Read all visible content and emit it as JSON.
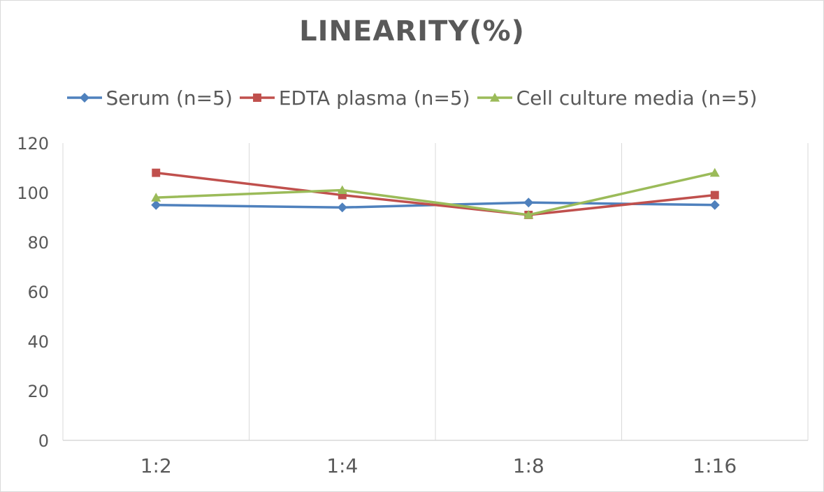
{
  "chart_data": {
    "type": "line",
    "title": "LINEARITY(%)",
    "xlabel": "",
    "ylabel": "",
    "categories": [
      "1:2",
      "1:4",
      "1:8",
      "1:16"
    ],
    "ylim": [
      0,
      120
    ],
    "yticks": [
      0,
      20,
      40,
      60,
      80,
      100,
      120
    ],
    "grid": "vertical category dividers",
    "legend_position": "top",
    "series": [
      {
        "name": "Serum (n=5)",
        "values": [
          95,
          94,
          96,
          95
        ],
        "color": "#4F81BD",
        "marker": "diamond"
      },
      {
        "name": "EDTA plasma (n=5)",
        "values": [
          108,
          99,
          91,
          99
        ],
        "color": "#C0504D",
        "marker": "square"
      },
      {
        "name": "Cell culture media (n=5)",
        "values": [
          98,
          101,
          91,
          108
        ],
        "color": "#9BBB59",
        "marker": "triangle"
      }
    ]
  }
}
